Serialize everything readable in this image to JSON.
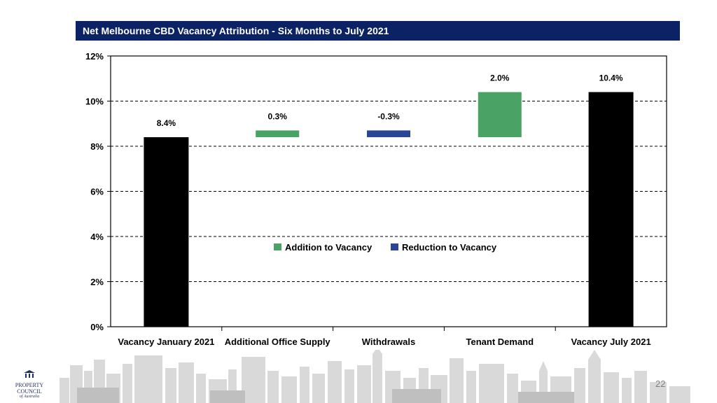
{
  "header": {
    "title": "Net Melbourne CBD Vacancy Attribution - Six Months to July 2021"
  },
  "chart_data": {
    "type": "bar",
    "subtype": "waterfall",
    "categories": [
      "Vacancy January 2021",
      "Additional Office Supply",
      "Withdrawals",
      "Tenant Demand",
      "Vacancy July 2021"
    ],
    "bars": [
      {
        "base": 0,
        "value": 8.4,
        "label": "8.4%",
        "kind": "total"
      },
      {
        "base": 8.4,
        "value": 0.3,
        "label": "0.3%",
        "kind": "addition"
      },
      {
        "base": 8.4,
        "value": 0.3,
        "label": "-0.3%",
        "kind": "reduction"
      },
      {
        "base": 8.4,
        "value": 2.0,
        "label": "2.0%",
        "kind": "addition"
      },
      {
        "base": 0,
        "value": 10.4,
        "label": "10.4%",
        "kind": "total"
      }
    ],
    "y_ticks": [
      "0%",
      "2%",
      "4%",
      "6%",
      "8%",
      "10%",
      "12%"
    ],
    "ylim": [
      0,
      12
    ],
    "gridlines": "dashed",
    "legend": [
      {
        "name": "Addition to Vacancy",
        "color": "#4aa264"
      },
      {
        "name": "Reduction to Vacancy",
        "color": "#2b4596"
      }
    ],
    "legend_position": "center",
    "colors": {
      "total": "#000000",
      "addition": "#4aa264",
      "reduction": "#2b4596"
    }
  },
  "footer": {
    "logo_line1": "PROPERTY",
    "logo_line2": "COUNCIL",
    "logo_line3": "of Australia",
    "page_number": "22"
  }
}
